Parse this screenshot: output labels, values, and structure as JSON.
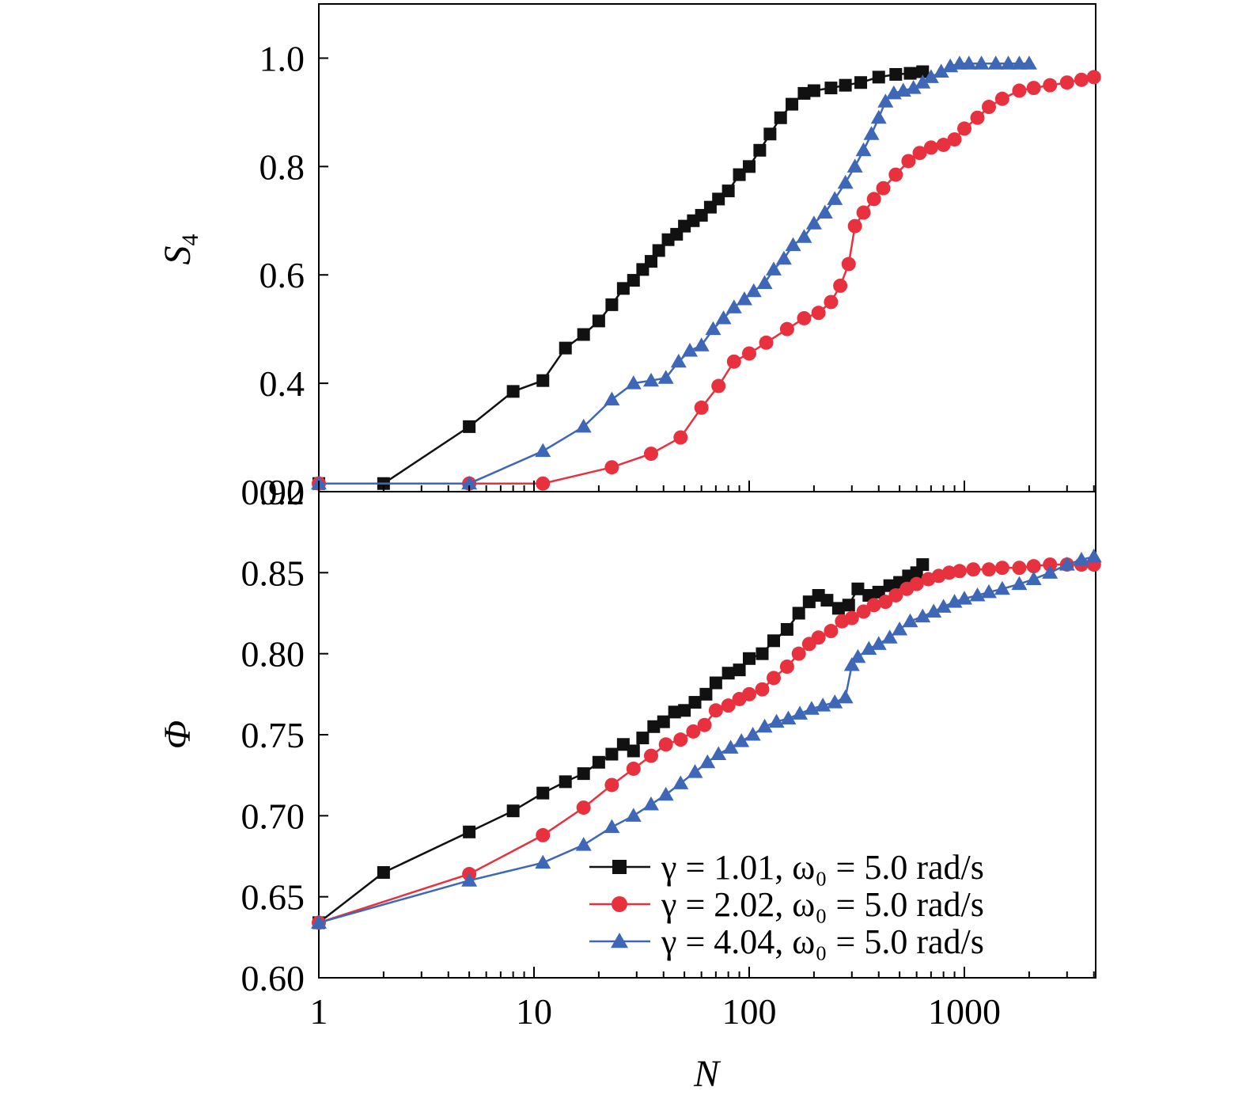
{
  "chart_data": [
    {
      "type": "line",
      "panel": "top",
      "x_scale": "log",
      "xlim": [
        1,
        4000
      ],
      "ylim": [
        0.2,
        1.1
      ],
      "ylabel": "S",
      "ylabel_sub": "4",
      "yticks": [
        "0.2",
        "0.4",
        "0.6",
        "0.8",
        "1.0"
      ],
      "grid": false,
      "series": [
        {
          "color": "#111111",
          "marker": "square",
          "x": [
            1,
            2,
            5,
            8,
            11,
            14,
            17,
            20,
            23,
            26,
            29,
            32,
            35,
            38,
            42,
            46,
            50,
            55,
            60,
            66,
            72,
            80,
            90,
            100,
            112,
            125,
            140,
            158,
            180,
            200,
            240,
            280,
            330,
            400,
            480,
            560,
            640
          ],
          "y": [
            0.215,
            0.215,
            0.32,
            0.385,
            0.405,
            0.465,
            0.49,
            0.515,
            0.545,
            0.575,
            0.59,
            0.61,
            0.625,
            0.645,
            0.665,
            0.675,
            0.69,
            0.7,
            0.71,
            0.725,
            0.74,
            0.755,
            0.785,
            0.8,
            0.83,
            0.86,
            0.89,
            0.915,
            0.935,
            0.94,
            0.945,
            0.95,
            0.955,
            0.965,
            0.97,
            0.972,
            0.975
          ]
        },
        {
          "color": "#e8313f",
          "marker": "circle",
          "x": [
            1,
            5,
            11,
            23,
            35,
            48,
            60,
            72,
            85,
            100,
            120,
            150,
            180,
            210,
            240,
            265,
            290,
            310,
            340,
            380,
            420,
            480,
            550,
            620,
            700,
            800,
            900,
            1000,
            1150,
            1300,
            1500,
            1800,
            2100,
            2500,
            3000,
            3500,
            4000
          ],
          "y": [
            0.215,
            0.215,
            0.215,
            0.245,
            0.27,
            0.3,
            0.355,
            0.395,
            0.44,
            0.455,
            0.475,
            0.5,
            0.52,
            0.53,
            0.55,
            0.58,
            0.62,
            0.69,
            0.715,
            0.74,
            0.76,
            0.785,
            0.81,
            0.825,
            0.835,
            0.84,
            0.85,
            0.87,
            0.89,
            0.91,
            0.925,
            0.94,
            0.945,
            0.95,
            0.955,
            0.96,
            0.965
          ]
        },
        {
          "color": "#3f67b8",
          "marker": "triangle",
          "x": [
            1,
            5,
            11,
            17,
            23,
            29,
            35,
            41,
            47,
            53,
            60,
            68,
            76,
            85,
            95,
            105,
            118,
            130,
            145,
            160,
            180,
            200,
            225,
            250,
            280,
            310,
            340,
            370,
            400,
            430,
            470,
            520,
            580,
            640,
            700,
            780,
            860,
            950,
            1050,
            1200,
            1400,
            1600,
            1800,
            2000
          ],
          "y": [
            0.215,
            0.215,
            0.275,
            0.32,
            0.37,
            0.4,
            0.405,
            0.41,
            0.44,
            0.46,
            0.47,
            0.5,
            0.52,
            0.54,
            0.555,
            0.57,
            0.585,
            0.61,
            0.63,
            0.655,
            0.67,
            0.695,
            0.715,
            0.74,
            0.77,
            0.8,
            0.83,
            0.86,
            0.89,
            0.92,
            0.935,
            0.94,
            0.945,
            0.955,
            0.965,
            0.975,
            0.985,
            0.99,
            0.99,
            0.99,
            0.99,
            0.99,
            0.99,
            0.99
          ]
        }
      ]
    },
    {
      "type": "line",
      "panel": "bottom",
      "x_scale": "log",
      "xlim": [
        1,
        4000
      ],
      "ylim": [
        0.6,
        0.9
      ],
      "xlabel": "N",
      "ylabel": "Φ",
      "xticks": [
        "1",
        "10",
        "100",
        "1000"
      ],
      "yticks": [
        "0.60",
        "0.65",
        "0.70",
        "0.75",
        "0.80",
        "0.85",
        "0.90"
      ],
      "grid": false,
      "legend_position": "bottom-right",
      "series": [
        {
          "name": "γ = 1.01, ω₀ = 5.0 rad/s",
          "color": "#111111",
          "marker": "square",
          "x": [
            1,
            2,
            5,
            8,
            11,
            14,
            17,
            20,
            23,
            26,
            29,
            32,
            36,
            40,
            45,
            50,
            56,
            63,
            70,
            80,
            90,
            100,
            115,
            130,
            150,
            170,
            190,
            210,
            230,
            260,
            290,
            320,
            360,
            400,
            450,
            500,
            550,
            600,
            640
          ],
          "y": [
            0.634,
            0.665,
            0.69,
            0.703,
            0.714,
            0.721,
            0.726,
            0.733,
            0.738,
            0.744,
            0.74,
            0.748,
            0.755,
            0.758,
            0.764,
            0.765,
            0.77,
            0.775,
            0.782,
            0.788,
            0.79,
            0.797,
            0.8,
            0.808,
            0.815,
            0.825,
            0.832,
            0.836,
            0.833,
            0.828,
            0.83,
            0.84,
            0.836,
            0.838,
            0.842,
            0.844,
            0.848,
            0.85,
            0.855
          ]
        },
        {
          "name": "γ = 2.02, ω₀ = 5.0 rad/s",
          "color": "#e8313f",
          "marker": "circle",
          "x": [
            1,
            5,
            11,
            17,
            23,
            29,
            35,
            41,
            48,
            55,
            62,
            70,
            80,
            90,
            100,
            115,
            130,
            150,
            170,
            190,
            210,
            240,
            270,
            300,
            340,
            380,
            430,
            480,
            540,
            600,
            680,
            760,
            850,
            950,
            1100,
            1300,
            1500,
            1800,
            2100,
            2500,
            3000,
            3500,
            4000
          ],
          "y": [
            0.634,
            0.664,
            0.688,
            0.705,
            0.719,
            0.729,
            0.737,
            0.744,
            0.747,
            0.752,
            0.756,
            0.765,
            0.768,
            0.772,
            0.775,
            0.778,
            0.785,
            0.792,
            0.8,
            0.806,
            0.81,
            0.814,
            0.82,
            0.822,
            0.826,
            0.83,
            0.832,
            0.836,
            0.84,
            0.843,
            0.846,
            0.848,
            0.85,
            0.851,
            0.852,
            0.852,
            0.853,
            0.853,
            0.854,
            0.855,
            0.855,
            0.855,
            0.855
          ]
        },
        {
          "name": "γ = 4.04, ω₀ = 5.0 rad/s",
          "color": "#3f67b8",
          "marker": "triangle",
          "x": [
            1,
            5,
            11,
            17,
            23,
            29,
            35,
            41,
            48,
            56,
            64,
            72,
            82,
            92,
            104,
            118,
            134,
            152,
            172,
            195,
            220,
            250,
            280,
            300,
            320,
            360,
            400,
            450,
            500,
            560,
            640,
            720,
            800,
            900,
            1000,
            1150,
            1300,
            1500,
            1800,
            2100,
            2500,
            3000,
            3500,
            4000
          ],
          "y": [
            0.634,
            0.66,
            0.671,
            0.682,
            0.693,
            0.7,
            0.707,
            0.713,
            0.72,
            0.727,
            0.733,
            0.738,
            0.742,
            0.746,
            0.75,
            0.755,
            0.758,
            0.76,
            0.763,
            0.766,
            0.768,
            0.77,
            0.773,
            0.793,
            0.798,
            0.803,
            0.806,
            0.81,
            0.815,
            0.82,
            0.823,
            0.826,
            0.829,
            0.832,
            0.834,
            0.836,
            0.838,
            0.84,
            0.843,
            0.846,
            0.85,
            0.855,
            0.858,
            0.86
          ]
        }
      ]
    }
  ]
}
